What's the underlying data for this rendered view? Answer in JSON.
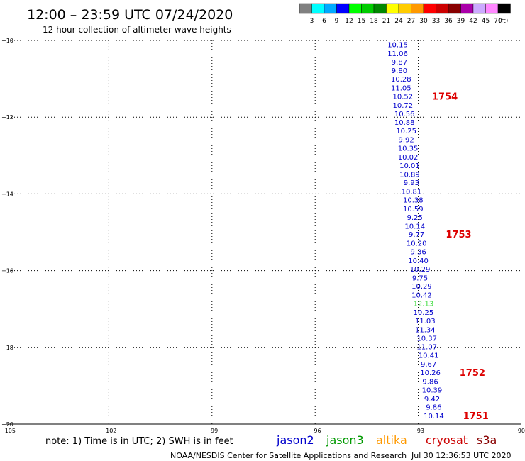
{
  "header": {
    "title": "12:00 – 23:59 UTC 07/24/2020",
    "subtitle": "12 hour collection of altimeter wave heights"
  },
  "colorbar": {
    "colors": [
      "#808080",
      "#00ffff",
      "#00aaff",
      "#0000ff",
      "#00ff00",
      "#00cc00",
      "#008800",
      "#ffff00",
      "#ffcc00",
      "#ff9900",
      "#ff0000",
      "#cc0000",
      "#880000",
      "#aa00aa",
      "#ccaaff",
      "#ff88ff",
      "#000000"
    ],
    "labels": [
      "3",
      "6",
      "9",
      "12",
      "15",
      "18",
      "21",
      "24",
      "27",
      "30",
      "33",
      "36",
      "39",
      "42",
      "45",
      "70"
    ],
    "unit": "(ft)"
  },
  "footer": {
    "note": "note: 1) Time is in UTC; 2) SWH is in feet",
    "credit": "NOAA/NESDIS Center for Satellite Applications and Research",
    "timestamp": "Jul 30 12:36:53 UTC 2020",
    "missions": [
      {
        "name": "jason2",
        "color": "#0000cc"
      },
      {
        "name": "jason3",
        "color": "#009900"
      },
      {
        "name": "altika",
        "color": "#ff9900"
      },
      {
        "name": "cryosat",
        "color": "#cc0000"
      },
      {
        "name": "s3a",
        "color": "#880000"
      }
    ]
  },
  "chart_data": {
    "type": "scatter",
    "xlim": [
      -105,
      -90
    ],
    "ylim": [
      -20,
      -10
    ],
    "xticks": [
      -105,
      -102,
      -99,
      -96,
      -93,
      -90
    ],
    "yticks": [
      -10,
      -12,
      -14,
      -16,
      -18,
      -20
    ],
    "xtick_labels": [
      "−105",
      "−102",
      "−99",
      "−96",
      "−93",
      "−90"
    ],
    "ytick_labels": [
      "−10",
      "−12",
      "−14",
      "−16",
      "−18",
      "−20"
    ],
    "grid": true,
    "points": [
      {
        "x": -93.6,
        "y": -10.1,
        "label": "10.15",
        "color": "#0000cc"
      },
      {
        "x": -93.6,
        "y": -10.33,
        "label": "11.06",
        "color": "#0000cc"
      },
      {
        "x": -93.55,
        "y": -10.55,
        "label": "9.87",
        "color": "#0000cc"
      },
      {
        "x": -93.55,
        "y": -10.78,
        "label": "9.80",
        "color": "#0000cc"
      },
      {
        "x": -93.5,
        "y": -11.0,
        "label": "10.28",
        "color": "#0000cc"
      },
      {
        "x": -93.5,
        "y": -11.23,
        "label": "11.05",
        "color": "#0000cc"
      },
      {
        "x": -93.45,
        "y": -11.45,
        "label": "10.52",
        "color": "#0000cc"
      },
      {
        "x": -93.45,
        "y": -11.68,
        "label": "10.72",
        "color": "#0000cc"
      },
      {
        "x": -93.4,
        "y": -11.9,
        "label": "10.56",
        "color": "#0000cc"
      },
      {
        "x": -93.4,
        "y": -12.13,
        "label": "10.88",
        "color": "#0000cc"
      },
      {
        "x": -93.35,
        "y": -12.35,
        "label": "10.25",
        "color": "#0000cc"
      },
      {
        "x": -93.35,
        "y": -12.58,
        "label": "9.92",
        "color": "#0000cc"
      },
      {
        "x": -93.3,
        "y": -12.8,
        "label": "10.35",
        "color": "#0000cc"
      },
      {
        "x": -93.3,
        "y": -13.03,
        "label": "10.02",
        "color": "#0000cc"
      },
      {
        "x": -93.25,
        "y": -13.25,
        "label": "10.01",
        "color": "#0000cc"
      },
      {
        "x": -93.25,
        "y": -13.48,
        "label": "10.89",
        "color": "#0000cc"
      },
      {
        "x": -93.2,
        "y": -13.7,
        "label": "9.93",
        "color": "#0000cc"
      },
      {
        "x": -93.2,
        "y": -13.93,
        "label": "10.81",
        "color": "#0000cc"
      },
      {
        "x": -93.15,
        "y": -14.15,
        "label": "10.38",
        "color": "#0000cc"
      },
      {
        "x": -93.15,
        "y": -14.38,
        "label": "10.59",
        "color": "#0000cc"
      },
      {
        "x": -93.1,
        "y": -14.6,
        "label": "9.25",
        "color": "#0000cc"
      },
      {
        "x": -93.1,
        "y": -14.83,
        "label": "10.14",
        "color": "#0000cc"
      },
      {
        "x": -93.05,
        "y": -15.05,
        "label": "9.77",
        "color": "#0000cc"
      },
      {
        "x": -93.05,
        "y": -15.28,
        "label": "10.20",
        "color": "#0000cc"
      },
      {
        "x": -93.0,
        "y": -15.5,
        "label": "9.36",
        "color": "#0000cc"
      },
      {
        "x": -93.0,
        "y": -15.73,
        "label": "10.40",
        "color": "#0000cc"
      },
      {
        "x": -92.95,
        "y": -15.95,
        "label": "10.29",
        "color": "#0000cc"
      },
      {
        "x": -92.95,
        "y": -16.18,
        "label": "9.75",
        "color": "#0000cc"
      },
      {
        "x": -92.9,
        "y": -16.4,
        "label": "10.29",
        "color": "#0000cc"
      },
      {
        "x": -92.9,
        "y": -16.63,
        "label": "10.42",
        "color": "#0000cc"
      },
      {
        "x": -92.85,
        "y": -16.85,
        "label": "12.13",
        "color": "#44dd44"
      },
      {
        "x": -92.85,
        "y": -17.08,
        "label": "10.25",
        "color": "#0000cc"
      },
      {
        "x": -92.8,
        "y": -17.3,
        "label": "11.03",
        "color": "#0000cc"
      },
      {
        "x": -92.8,
        "y": -17.53,
        "label": "11.34",
        "color": "#0000cc"
      },
      {
        "x": -92.75,
        "y": -17.75,
        "label": "10.37",
        "color": "#0000cc"
      },
      {
        "x": -92.75,
        "y": -17.98,
        "label": "11.07",
        "color": "#0000cc"
      },
      {
        "x": -92.7,
        "y": -18.2,
        "label": "10.41",
        "color": "#0000cc"
      },
      {
        "x": -92.7,
        "y": -18.43,
        "label": "9.67",
        "color": "#0000cc"
      },
      {
        "x": -92.65,
        "y": -18.65,
        "label": "10.26",
        "color": "#0000cc"
      },
      {
        "x": -92.65,
        "y": -18.88,
        "label": "9.86",
        "color": "#0000cc"
      },
      {
        "x": -92.6,
        "y": -19.1,
        "label": "10.39",
        "color": "#0000cc"
      },
      {
        "x": -92.6,
        "y": -19.33,
        "label": "9.42",
        "color": "#0000cc"
      },
      {
        "x": -92.55,
        "y": -19.55,
        "label": "9.86",
        "color": "#0000cc"
      },
      {
        "x": -92.55,
        "y": -19.78,
        "label": "10.14",
        "color": "#0000cc"
      }
    ],
    "time_labels": [
      {
        "x": -92.6,
        "y": -11.45,
        "label": "1754"
      },
      {
        "x": -92.2,
        "y": -15.05,
        "label": "1753"
      },
      {
        "x": -91.8,
        "y": -18.65,
        "label": "1752"
      },
      {
        "x": -91.7,
        "y": -19.78,
        "label": "1751"
      }
    ]
  }
}
